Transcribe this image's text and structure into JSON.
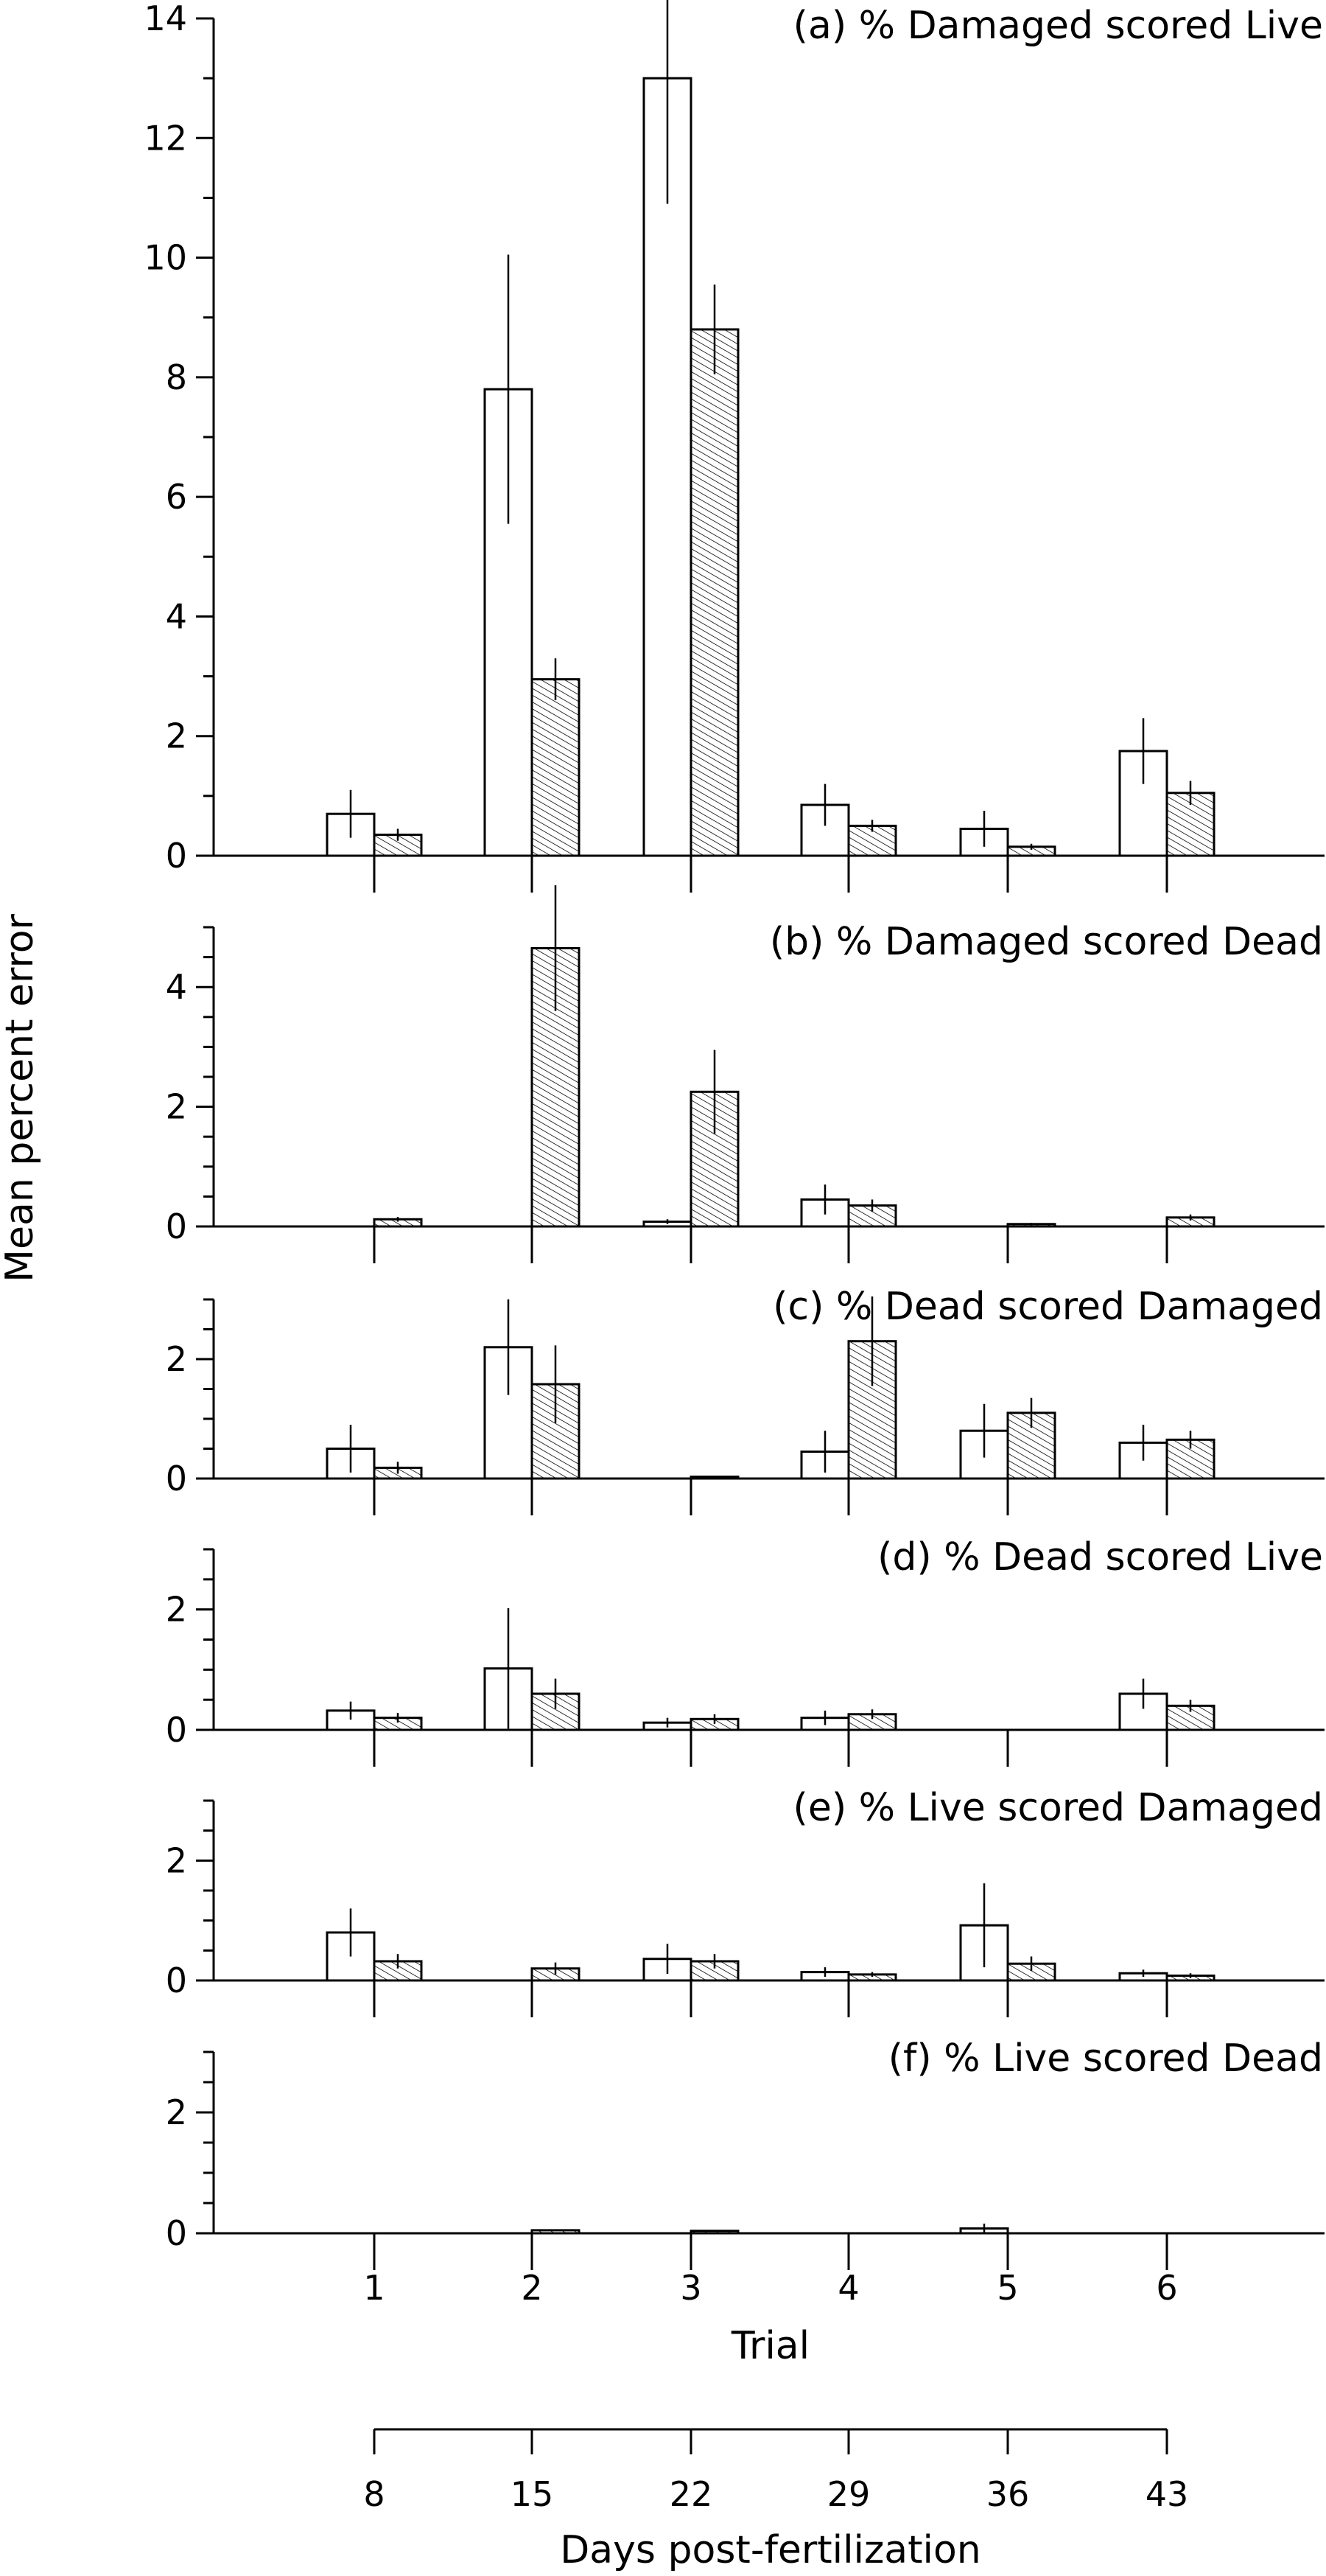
{
  "chart_data": [
    {
      "type": "bar",
      "title": "(a)  % Damaged scored Live",
      "ylim": [
        0,
        14
      ],
      "yticks": [
        0,
        2,
        4,
        6,
        8,
        10,
        12,
        14
      ],
      "categories": [
        "1",
        "2",
        "3",
        "4",
        "5",
        "6"
      ],
      "series": [
        {
          "style": "open",
          "values": [
            0.7,
            7.8,
            13.0,
            0.85,
            0.45,
            1.75
          ],
          "error": [
            0.4,
            2.25,
            2.1,
            0.35,
            0.3,
            0.55
          ]
        },
        {
          "style": "hatched",
          "values": [
            0.35,
            2.95,
            8.8,
            0.5,
            0.15,
            1.05
          ],
          "error": [
            0.1,
            0.35,
            0.75,
            0.1,
            0.05,
            0.2
          ]
        }
      ]
    },
    {
      "type": "bar",
      "title": "(b)  % Damaged scored Dead",
      "ylim": [
        0,
        5
      ],
      "yticks": [
        0,
        2,
        4
      ],
      "categories": [
        "1",
        "2",
        "3",
        "4",
        "5",
        "6"
      ],
      "series": [
        {
          "style": "open",
          "values": [
            0,
            0,
            0.08,
            0.45,
            0,
            0
          ],
          "error": [
            0,
            0,
            0.04,
            0.25,
            0,
            0
          ]
        },
        {
          "style": "hatched",
          "values": [
            0.12,
            4.65,
            2.25,
            0.35,
            0.04,
            0.15
          ],
          "error": [
            0.04,
            1.05,
            0.7,
            0.1,
            0.02,
            0.05
          ]
        }
      ]
    },
    {
      "type": "bar",
      "title": "(c)  % Dead scored Damaged",
      "ylim": [
        0,
        3
      ],
      "yticks": [
        0,
        2
      ],
      "categories": [
        "1",
        "2",
        "3",
        "4",
        "5",
        "6"
      ],
      "series": [
        {
          "style": "open",
          "values": [
            0.5,
            2.2,
            0,
            0.45,
            0.8,
            0.6
          ],
          "error": [
            0.4,
            0.8,
            0,
            0.35,
            0.45,
            0.3
          ]
        },
        {
          "style": "hatched",
          "values": [
            0.18,
            1.58,
            0.03,
            2.3,
            1.1,
            0.65
          ],
          "error": [
            0.1,
            0.65,
            0.01,
            0.75,
            0.25,
            0.15
          ]
        }
      ]
    },
    {
      "type": "bar",
      "title": "(d)  % Dead scored Live",
      "ylim": [
        0,
        3
      ],
      "yticks": [
        0,
        2
      ],
      "categories": [
        "1",
        "2",
        "3",
        "4",
        "5",
        "6"
      ],
      "series": [
        {
          "style": "open",
          "values": [
            0.32,
            1.02,
            0.12,
            0.2,
            0,
            0.6
          ],
          "error": [
            0.15,
            1.0,
            0.08,
            0.12,
            0,
            0.25
          ]
        },
        {
          "style": "hatched",
          "values": [
            0.2,
            0.6,
            0.18,
            0.26,
            0,
            0.4
          ],
          "error": [
            0.08,
            0.25,
            0.08,
            0.08,
            0,
            0.1
          ]
        }
      ]
    },
    {
      "type": "bar",
      "title": "(e)  % Live scored Damaged",
      "ylim": [
        0,
        3
      ],
      "yticks": [
        0,
        2
      ],
      "categories": [
        "1",
        "2",
        "3",
        "4",
        "5",
        "6"
      ],
      "series": [
        {
          "style": "open",
          "values": [
            0.8,
            0,
            0.36,
            0.14,
            0.92,
            0.12
          ],
          "error": [
            0.4,
            0,
            0.25,
            0.08,
            0.7,
            0.06
          ]
        },
        {
          "style": "hatched",
          "values": [
            0.32,
            0.2,
            0.32,
            0.1,
            0.28,
            0.08
          ],
          "error": [
            0.12,
            0.1,
            0.12,
            0.04,
            0.12,
            0.04
          ]
        }
      ]
    },
    {
      "type": "bar",
      "title": "(f)  % Live scored Dead",
      "ylim": [
        0,
        3
      ],
      "yticks": [
        0,
        2
      ],
      "categories": [
        "1",
        "2",
        "3",
        "4",
        "5",
        "6"
      ],
      "series": [
        {
          "style": "open",
          "values": [
            0,
            0,
            0,
            0,
            0.08,
            0
          ],
          "error": [
            0,
            0,
            0,
            0,
            0.08,
            0
          ]
        },
        {
          "style": "hatched",
          "values": [
            0,
            0.05,
            0.04,
            0,
            0,
            0
          ],
          "error": [
            0,
            0,
            0,
            0,
            0,
            0
          ]
        }
      ]
    }
  ],
  "y_label": "Mean percent error",
  "x_label": "Trial",
  "x_ticks": [
    "1",
    "2",
    "3",
    "4",
    "5",
    "6"
  ],
  "days_axis": {
    "label": "Days post-fertilization",
    "ticks": [
      "8",
      "15",
      "22",
      "29",
      "36",
      "43"
    ]
  }
}
